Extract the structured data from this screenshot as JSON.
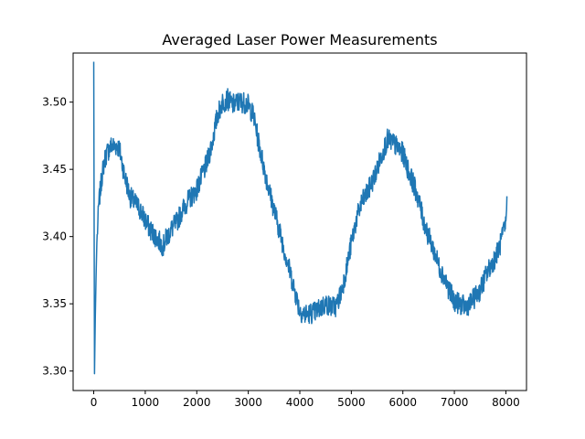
{
  "chart_data": {
    "type": "line",
    "title": "Averaged Laser Power Measurements",
    "xlabel": "",
    "ylabel": "",
    "xlim": [
      -400,
      8400
    ],
    "ylim": [
      3.2855,
      3.5365
    ],
    "x_ticks": [
      0,
      1000,
      2000,
      3000,
      4000,
      5000,
      6000,
      7000,
      8000
    ],
    "x_tick_labels": [
      "0",
      "1000",
      "2000",
      "3000",
      "4000",
      "5000",
      "6000",
      "7000",
      "8000"
    ],
    "y_ticks": [
      3.3,
      3.35,
      3.4,
      3.45,
      3.5
    ],
    "y_tick_labels": [
      "3.30",
      "3.35",
      "3.40",
      "3.45",
      "3.50"
    ],
    "grid": false,
    "legend": "none",
    "series": [
      {
        "color": "#1f77b4",
        "x": [
          0,
          15,
          30,
          45,
          60,
          80,
          100,
          130,
          160,
          200,
          250,
          300,
          350,
          400,
          450,
          500,
          550,
          600,
          650,
          700,
          800,
          900,
          1000,
          1100,
          1200,
          1300,
          1350,
          1400,
          1500,
          1600,
          1700,
          1800,
          1900,
          2000,
          2100,
          2200,
          2300,
          2400,
          2500,
          2600,
          2700,
          2800,
          2900,
          3000,
          3100,
          3200,
          3300,
          3400,
          3500,
          3600,
          3700,
          3800,
          3900,
          4000,
          4100,
          4200,
          4300,
          4400,
          4500,
          4600,
          4700,
          4800,
          4900,
          5000,
          5100,
          5200,
          5300,
          5400,
          5500,
          5600,
          5700,
          5800,
          5900,
          6000,
          6100,
          6200,
          6300,
          6400,
          6500,
          6600,
          6700,
          6800,
          6900,
          7000,
          7100,
          7200,
          7300,
          7400,
          7500,
          7600,
          7700,
          7800,
          7900,
          8000,
          8020
        ],
        "y": [
          3.53,
          3.298,
          3.34,
          3.37,
          3.395,
          3.41,
          3.425,
          3.435,
          3.445,
          3.455,
          3.462,
          3.465,
          3.468,
          3.467,
          3.468,
          3.465,
          3.455,
          3.445,
          3.438,
          3.43,
          3.425,
          3.42,
          3.412,
          3.405,
          3.4,
          3.395,
          3.393,
          3.398,
          3.405,
          3.41,
          3.418,
          3.425,
          3.43,
          3.435,
          3.445,
          3.455,
          3.47,
          3.49,
          3.5,
          3.502,
          3.498,
          3.5,
          3.5,
          3.498,
          3.49,
          3.47,
          3.452,
          3.435,
          3.42,
          3.405,
          3.39,
          3.375,
          3.36,
          3.345,
          3.342,
          3.343,
          3.344,
          3.347,
          3.35,
          3.348,
          3.348,
          3.358,
          3.375,
          3.395,
          3.413,
          3.425,
          3.432,
          3.44,
          3.45,
          3.462,
          3.472,
          3.47,
          3.466,
          3.462,
          3.45,
          3.44,
          3.428,
          3.412,
          3.4,
          3.39,
          3.378,
          3.37,
          3.36,
          3.352,
          3.35,
          3.348,
          3.35,
          3.355,
          3.36,
          3.37,
          3.378,
          3.385,
          3.395,
          3.41,
          3.43
        ]
      }
    ]
  }
}
